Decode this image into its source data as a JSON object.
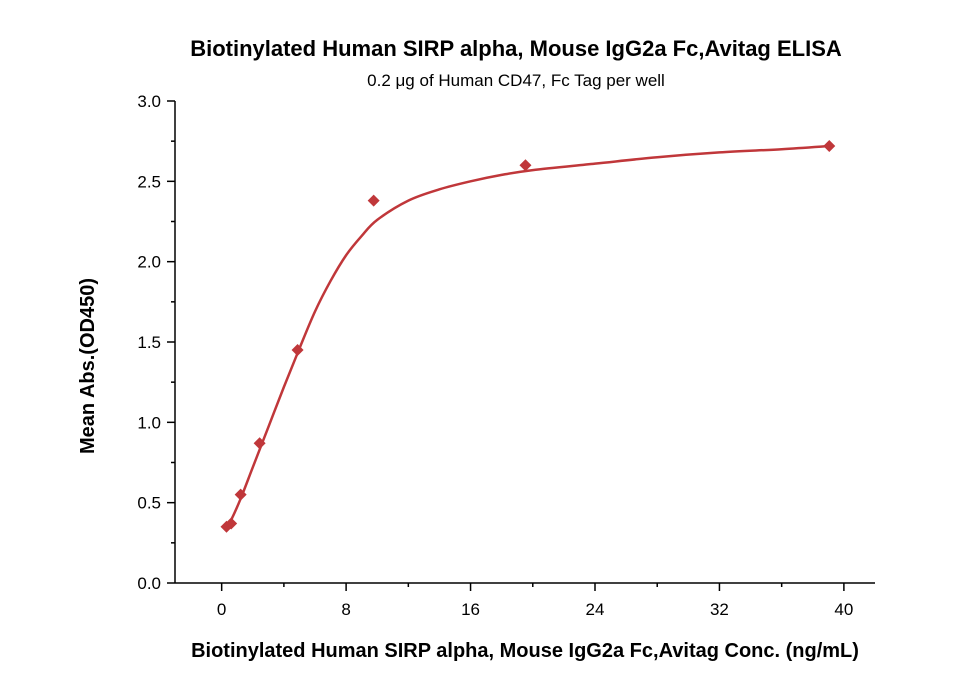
{
  "chart_data": {
    "type": "scatter",
    "title": "Biotinylated Human SIRP alpha, Mouse IgG2a Fc,Avitag ELISA",
    "subtitle": "0.2 μg of Human CD47, Fc Tag per well",
    "xlabel": "Biotinylated Human SIRP alpha, Mouse IgG2a Fc,Avitag Conc. (ng/mL)",
    "ylabel": "Mean Abs.(OD450)",
    "xlim": [
      -3,
      42
    ],
    "ylim": [
      0,
      3.0
    ],
    "x_ticks": [
      0,
      8,
      16,
      24,
      32,
      40
    ],
    "y_ticks": [
      0.0,
      0.5,
      1.0,
      1.5,
      2.0,
      2.5,
      3.0
    ],
    "x_tick_labels": [
      "0",
      "8",
      "16",
      "24",
      "32",
      "40"
    ],
    "y_tick_labels": [
      "0.0",
      "0.5",
      "1.0",
      "1.5",
      "2.0",
      "2.5",
      "3.0"
    ],
    "grid": false,
    "series": [
      {
        "color": "#c0373a",
        "marker": "diamond",
        "x": [
          0.31,
          0.61,
          1.22,
          2.44,
          4.88,
          9.77,
          19.53,
          39.06
        ],
        "y": [
          0.35,
          0.37,
          0.55,
          0.87,
          1.45,
          2.38,
          2.6,
          2.72
        ]
      }
    ],
    "fit_curve": {
      "color": "#c0373a",
      "x": [
        0.3,
        0.6,
        1.2,
        2.0,
        3.0,
        4.0,
        5.0,
        6.0,
        7.0,
        8.0,
        9.0,
        10.0,
        12.0,
        14.0,
        16.0,
        18.0,
        20.0,
        24.0,
        28.0,
        32.0,
        36.0,
        39.1
      ],
      "y": [
        0.34,
        0.39,
        0.52,
        0.72,
        0.97,
        1.22,
        1.46,
        1.69,
        1.88,
        2.04,
        2.16,
        2.26,
        2.38,
        2.45,
        2.5,
        2.54,
        2.57,
        2.61,
        2.65,
        2.68,
        2.7,
        2.72
      ]
    }
  }
}
